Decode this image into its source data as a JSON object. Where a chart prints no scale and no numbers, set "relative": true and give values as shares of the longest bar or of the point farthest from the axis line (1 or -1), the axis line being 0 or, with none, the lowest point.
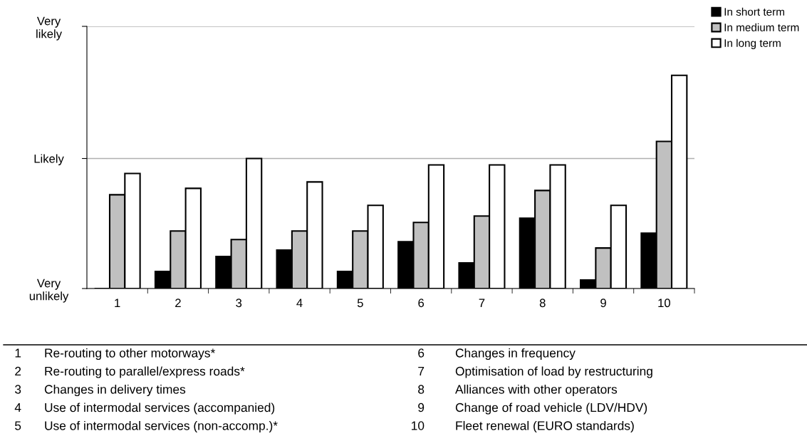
{
  "chart_data": {
    "type": "bar",
    "relative": true,
    "categories": [
      "1",
      "2",
      "3",
      "4",
      "5",
      "6",
      "7",
      "8",
      "9",
      "10"
    ],
    "series": [
      {
        "name": "In short term",
        "color": "#000000",
        "values": [
          0,
          0.08,
          0.15,
          0.18,
          0.08,
          0.22,
          0.12,
          0.33,
          0.04,
          0.26
        ]
      },
      {
        "name": "In medium term",
        "color": "#c0c0c0",
        "values": [
          0.44,
          0.27,
          0.23,
          0.27,
          0.27,
          0.31,
          0.34,
          0.46,
          0.19,
          0.69
        ]
      },
      {
        "name": "In long term",
        "color": "#ffffff",
        "values": [
          0.54,
          0.47,
          0.61,
          0.5,
          0.39,
          0.58,
          0.58,
          0.58,
          0.39,
          1
        ]
      }
    ],
    "ref_lines": [
      {
        "axis": "y",
        "value": 0,
        "label": "Very\nunlikely",
        "color": "#b0b0b0"
      },
      {
        "axis": "y",
        "value": 0.61,
        "label": "Likely",
        "color": "#b0b0b0"
      },
      {
        "axis": "y",
        "value": 1.23,
        "label": "Very\nlikely",
        "color": "#b0b0b0"
      }
    ],
    "legend": "top right",
    "annotations": [
      "1 Re-routing to other motorways*",
      "2 Re-routing to parallel/express roads*",
      "3 Changes in delivery times",
      "4 Use of intermodal services (accompanied)",
      "5 Use of intermodal services (non-accomp.)*",
      "6 Changes in frequency",
      "7 Optimisation of load by restructuring",
      "8 Alliances with other operators",
      "9 Change of road vehicle (LDV/HDV)",
      "10 Fleet renewal (EURO standards)"
    ]
  }
}
